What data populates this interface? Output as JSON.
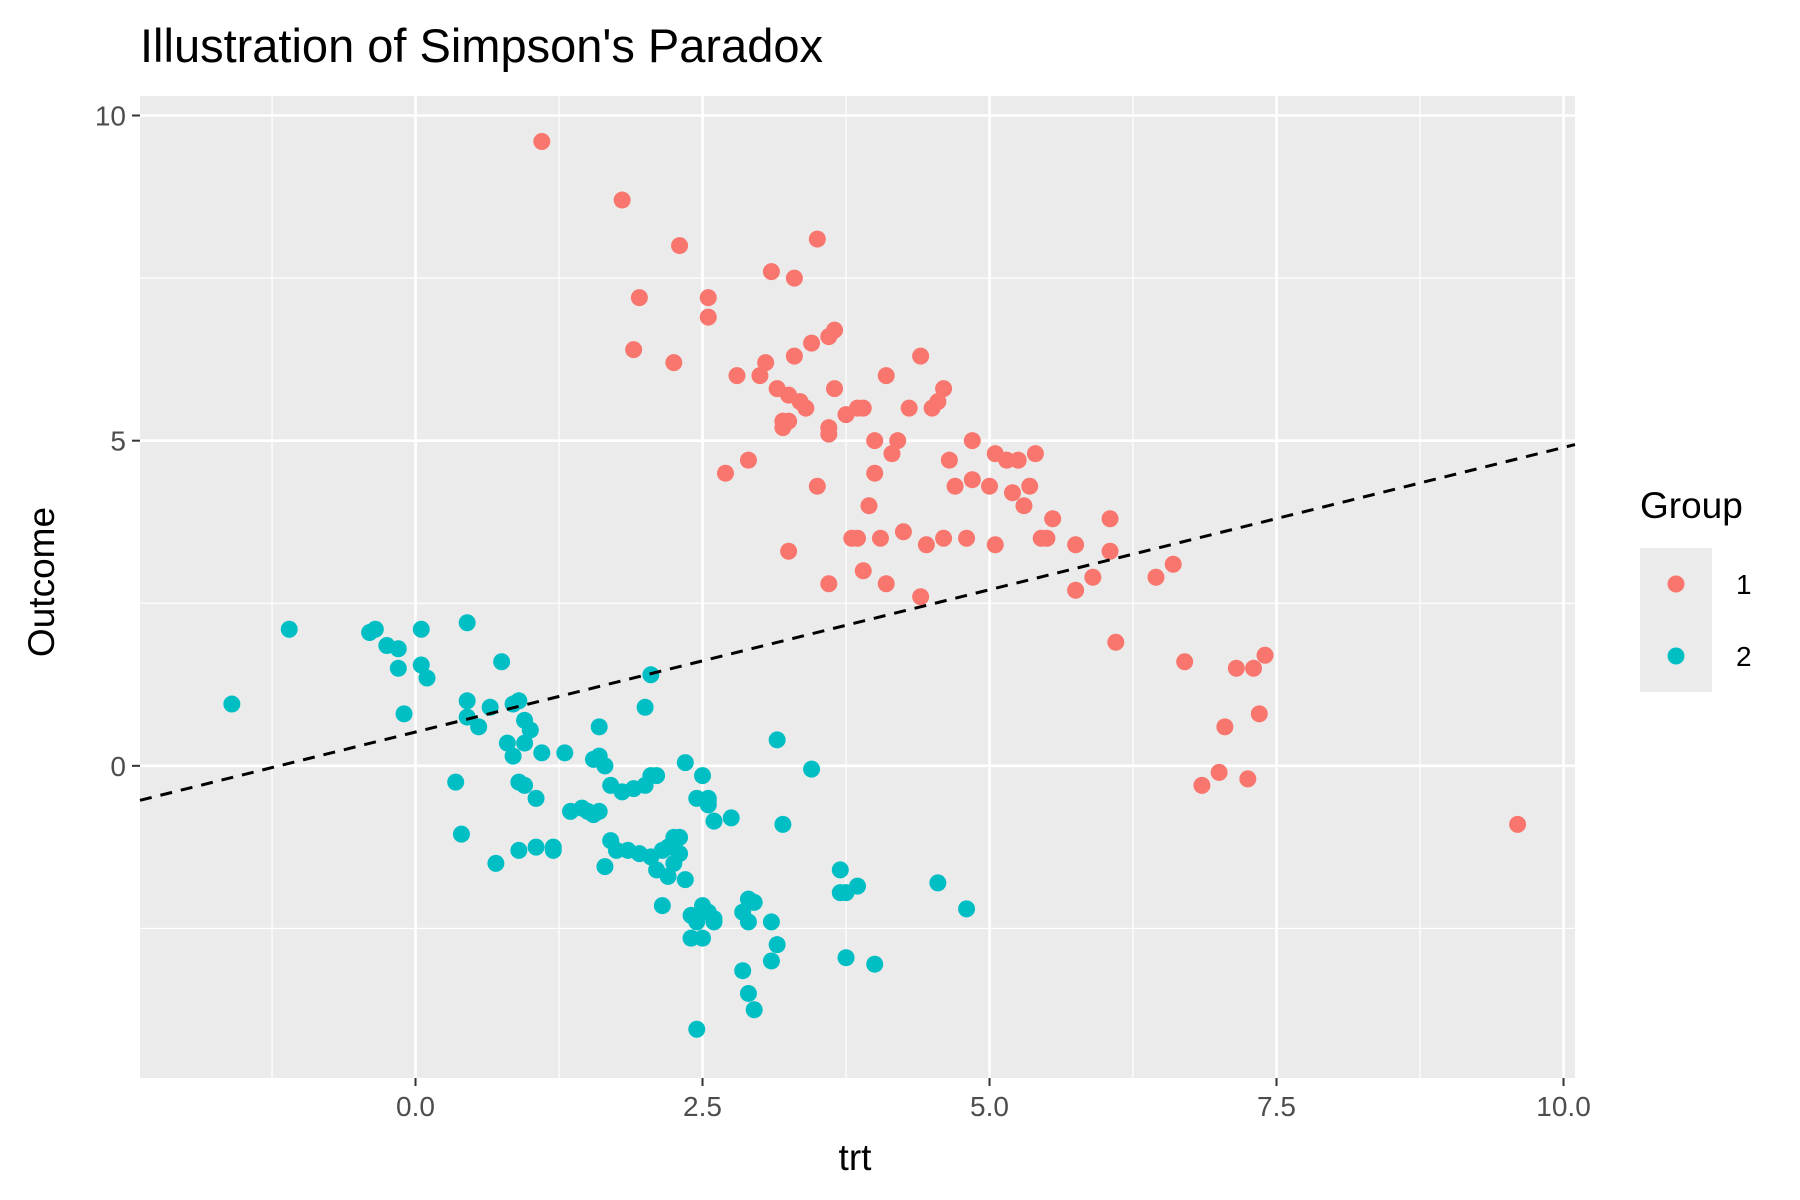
{
  "chart_data": {
    "type": "scatter",
    "title": "Illustration of Simpson's Paradox",
    "xlabel": "trt",
    "ylabel": "Outcome",
    "xlim": [
      -2.4,
      10.1
    ],
    "ylim": [
      -4.8,
      10.3
    ],
    "x_ticks": [
      0.0,
      2.5,
      5.0,
      7.5,
      10.0
    ],
    "x_tick_labels": [
      "0.0",
      "2.5",
      "5.0",
      "7.5",
      "10.0"
    ],
    "y_ticks": [
      0,
      5,
      10
    ],
    "y_tick_labels": [
      "0",
      "5",
      "10"
    ],
    "grid": true,
    "panel_background": "#ebebeb",
    "grid_color": "#ffffff",
    "legend": {
      "title": "Group",
      "position": "right"
    },
    "reference_line": {
      "style": "dashed",
      "color": "#000000",
      "x": [
        -2.4,
        10.1
      ],
      "y": [
        -0.53,
        4.94
      ]
    },
    "series": [
      {
        "name": "1",
        "color": "#f8766d",
        "x": [
          1.1,
          1.8,
          2.3,
          1.95,
          2.55,
          2.55,
          1.9,
          2.25,
          3.5,
          3.1,
          3.3,
          3.65,
          3.6,
          3.45,
          3.3,
          3.05,
          3.0,
          2.8,
          3.15,
          3.25,
          3.2,
          3.35,
          3.4,
          3.65,
          3.75,
          3.9,
          3.85,
          3.6,
          3.6,
          3.2,
          3.25,
          2.9,
          2.7,
          3.5,
          4.1,
          4.0,
          4.2,
          4.15,
          4.3,
          4.5,
          4.55,
          4.6,
          4.4,
          4.0,
          3.95,
          4.65,
          4.85,
          5.05,
          5.15,
          5.25,
          5.4,
          5.35,
          4.7,
          4.85,
          5.0,
          5.2,
          5.3,
          3.85,
          4.05,
          4.25,
          4.45,
          4.6,
          4.8,
          5.05,
          5.55,
          5.5,
          5.45,
          5.75,
          6.05,
          6.05,
          5.9,
          5.75,
          3.6,
          4.1,
          4.4,
          3.8,
          3.9,
          3.25,
          6.1,
          6.45,
          6.6,
          6.7,
          7.05,
          7.15,
          7.3,
          7.4,
          7.35,
          7.0,
          6.85,
          7.25,
          9.6
        ],
        "y": [
          9.6,
          8.7,
          8.0,
          7.2,
          7.2,
          6.9,
          6.4,
          6.2,
          8.1,
          7.6,
          7.5,
          6.7,
          6.6,
          6.5,
          6.3,
          6.2,
          6.0,
          6.0,
          5.8,
          5.7,
          5.3,
          5.6,
          5.5,
          5.8,
          5.4,
          5.5,
          5.5,
          5.2,
          5.1,
          5.2,
          5.3,
          4.7,
          4.5,
          4.3,
          6.0,
          5.0,
          5.0,
          4.8,
          5.5,
          5.5,
          5.6,
          5.8,
          6.3,
          4.5,
          4.0,
          4.7,
          5.0,
          4.8,
          4.7,
          4.7,
          4.8,
          4.3,
          4.3,
          4.4,
          4.3,
          4.2,
          4.0,
          3.5,
          3.5,
          3.6,
          3.4,
          3.5,
          3.5,
          3.4,
          3.8,
          3.5,
          3.5,
          3.4,
          3.8,
          3.3,
          2.9,
          2.7,
          2.8,
          2.8,
          2.6,
          3.5,
          3.0,
          3.3,
          1.9,
          2.9,
          3.1,
          1.6,
          0.6,
          1.5,
          1.5,
          1.7,
          0.8,
          -0.1,
          -0.3,
          -0.2,
          -0.9
        ]
      },
      {
        "name": "2",
        "color": "#00bfc4",
        "x": [
          -1.6,
          -1.1,
          -0.4,
          -0.35,
          -0.25,
          -0.15,
          -0.15,
          0.05,
          0.1,
          0.05,
          -0.1,
          0.45,
          0.75,
          0.45,
          0.45,
          0.65,
          0.55,
          0.35,
          0.85,
          0.9,
          0.95,
          1.0,
          0.95,
          1.1,
          0.8,
          0.85,
          0.9,
          1.05,
          1.2,
          1.3,
          1.6,
          1.6,
          1.55,
          1.65,
          1.7,
          1.8,
          1.9,
          2.0,
          2.05,
          2.1,
          2.05,
          2.0,
          1.7,
          1.75,
          1.5,
          1.55,
          1.35,
          1.45,
          1.6,
          1.05,
          0.9,
          0.4,
          0.95,
          0.7,
          1.2,
          1.65,
          1.85,
          1.95,
          2.05,
          2.1,
          2.15,
          2.2,
          2.25,
          2.3,
          2.3,
          2.25,
          2.2,
          2.15,
          2.35,
          2.4,
          2.45,
          2.5,
          2.55,
          2.6,
          2.55,
          2.55,
          2.45,
          2.5,
          2.75,
          2.6,
          2.35,
          3.45,
          3.2,
          2.9,
          2.95,
          2.85,
          2.9,
          3.1,
          3.15,
          3.1,
          2.85,
          2.9,
          2.95,
          2.45,
          3.7,
          3.75,
          3.85,
          3.7,
          3.75,
          4.0,
          4.55,
          4.8,
          2.4,
          2.5,
          2.6,
          2.55,
          2.5,
          3.15
        ],
        "y": [
          0.95,
          2.1,
          2.05,
          2.1,
          1.85,
          1.8,
          1.5,
          1.55,
          1.35,
          2.1,
          0.8,
          2.2,
          1.6,
          1.0,
          0.75,
          0.9,
          0.6,
          -0.25,
          0.95,
          1.0,
          0.7,
          0.55,
          0.35,
          0.2,
          0.35,
          0.15,
          -0.25,
          -0.5,
          -1.3,
          0.2,
          0.6,
          0.15,
          0.1,
          0.0,
          -0.3,
          -0.4,
          -0.35,
          -0.3,
          -0.15,
          -0.15,
          1.4,
          0.9,
          -1.15,
          -1.3,
          -0.7,
          -0.75,
          -0.7,
          -0.65,
          -0.7,
          -1.25,
          -1.3,
          -1.05,
          -0.3,
          -1.5,
          -1.25,
          -1.55,
          -1.3,
          -1.35,
          -1.4,
          -1.6,
          -1.3,
          -1.25,
          -1.1,
          -1.1,
          -1.35,
          -1.5,
          -1.7,
          -2.15,
          -1.75,
          -2.3,
          -2.4,
          -2.15,
          -2.25,
          -2.4,
          -0.5,
          -0.55,
          -0.5,
          -0.15,
          -0.8,
          -0.85,
          0.05,
          -0.05,
          -0.9,
          -2.05,
          -2.1,
          -2.25,
          -2.4,
          -2.4,
          -2.75,
          -3.0,
          -3.15,
          -3.5,
          -3.75,
          -4.05,
          -1.6,
          -1.95,
          -1.85,
          -1.95,
          -2.95,
          -3.05,
          -1.8,
          -2.2,
          -2.65,
          -2.65,
          -2.35,
          -0.6,
          -2.2,
          0.4
        ]
      }
    ]
  }
}
